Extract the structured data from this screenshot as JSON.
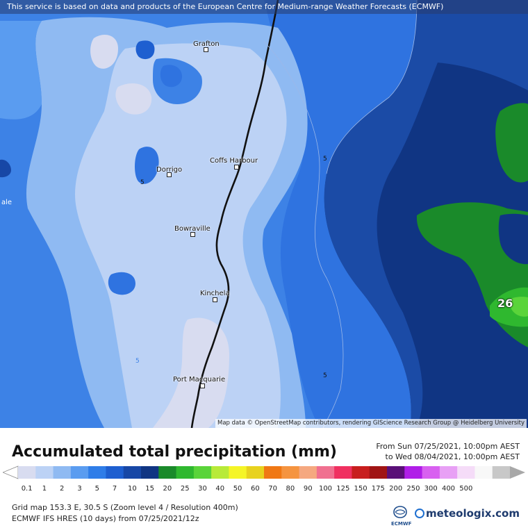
{
  "banner_text": "This service is based on data and products of the European Centre for Medium-range Weather Forecasts (ECMWF)",
  "attribution": "Map data © OpenStreetMap contributors, rendering GIScience Research Group @ Heidelberg University",
  "cities": [
    {
      "name": "Grafton"
    },
    {
      "name": "Dorrigo"
    },
    {
      "name": "Coffs Harbour"
    },
    {
      "name": "Bowraville"
    },
    {
      "name": "Kinchela"
    },
    {
      "name": "Port Macquarie"
    }
  ],
  "edge_label": "ale",
  "contour_labels": [
    "5",
    "5",
    "5",
    "5"
  ],
  "max_value_label": "26",
  "legend": {
    "title": "Accumulated total precipitation (mm)",
    "from": "From Sun 07/25/2021, 10:00pm AEST",
    "to": "to Wed 08/04/2021, 10:00pm AEST",
    "ticks": [
      "0.1",
      "1",
      "2",
      "3",
      "5",
      "7",
      "10",
      "15",
      "20",
      "25",
      "30",
      "40",
      "50",
      "60",
      "70",
      "80",
      "90",
      "100",
      "125",
      "150",
      "175",
      "200",
      "250",
      "300",
      "400",
      "500"
    ],
    "colors": [
      "#d8dcf0",
      "#bcd2f5",
      "#8fbaf2",
      "#5a9cf0",
      "#2f7de8",
      "#1e5fd0",
      "#1747a6",
      "#103583",
      "#1a8a2a",
      "#2fb82f",
      "#5ad43a",
      "#b8ea38",
      "#f5f526",
      "#e8d21e",
      "#f07814",
      "#f59440",
      "#f5a880",
      "#f07090",
      "#f03060",
      "#c81e1e",
      "#a01414",
      "#5a1078",
      "#b01ee8",
      "#d860f0",
      "#e8a0f5",
      "#f5dcf8",
      "#f8f8f8",
      "#c8c8c8"
    ]
  },
  "info_line1": "Grid map 153.3 E, 30.5 S (Zoom level 4 / Resolution 400m)",
  "info_line2": "ECMWF IFS HRES (10 days) from 07/25/2021/12z",
  "ecmwf_logo_text": "ECMWF",
  "brand": "meteologix.com"
}
